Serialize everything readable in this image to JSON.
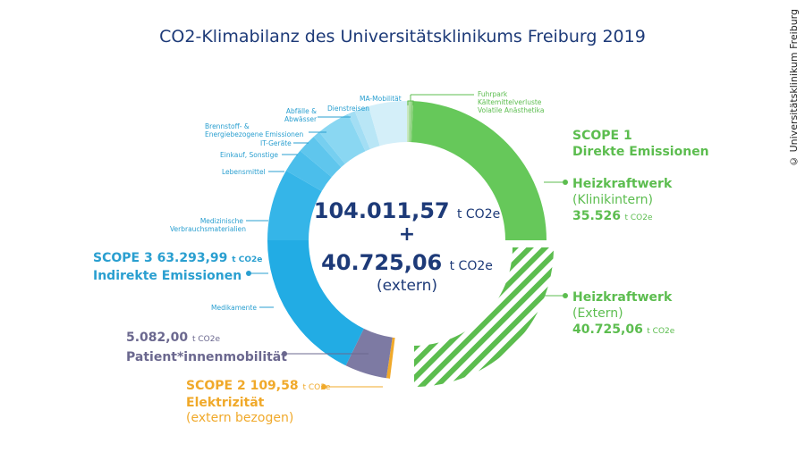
{
  "title": "CO2-Klimabilanz des Universitätsklinikums Freiburg 2019",
  "copyright": "© Universitätsklinikum Freiburg",
  "center": {
    "total": "104.011,57",
    "unit": "t CO2e",
    "plus": "+",
    "extern": "40.725,06",
    "extern_label": "(extern)"
  },
  "labels": {
    "scope1": "SCOPE 1",
    "scope1_sub": "Direkte Emissionen",
    "hkw_int": "Heizkraftwerk",
    "hkw_int_sub": "(Klinikintern)",
    "hkw_int_val": "35.526",
    "unit": "t CO2e",
    "hkw_ext": "Heizkraftwerk",
    "hkw_ext_sub": "(Extern)",
    "hkw_ext_val": "40.725,06",
    "scope3": "SCOPE 3 63.293,99",
    "scope3_sub": "Indirekte Emissionen",
    "patient_val": "5.082,00",
    "patient": "Patient*innenmobilität",
    "scope2": "SCOPE 2 109,58",
    "scope2_sub": "Elektrizität",
    "scope2_sub2": "(extern bezogen)",
    "fuhrpark": "Fuhrpark",
    "kaelte": "Kältemittelverluste",
    "volatile": "Volatile Anästhetika",
    "ma": "MA-Mobilität",
    "dienst": "Dienstreisen",
    "abfall1": "Abfälle &",
    "abfall2": "Abwässer",
    "brenn1": "Brennstoff- &",
    "brenn2": "Energiebezogene Emissionen",
    "it": "IT-Geräte",
    "einkauf": "Einkauf, Sonstige",
    "lebens": "Lebensmittel",
    "med1": "Medizinische",
    "med2": "Verbrauchsmaterialien",
    "medik": "Medikamente"
  },
  "chart_data": {
    "type": "pie",
    "title": "CO2-Klimabilanz des Universitätsklinikums Freiburg 2019",
    "unit": "t CO2e",
    "series": [
      {
        "name": "Fuhrpark",
        "color": "#c9e8c0"
      },
      {
        "name": "Kältemittelverluste",
        "color": "#a8dc9c"
      },
      {
        "name": "Volatile Anästhetika",
        "color": "#8ed27f"
      },
      {
        "name": "Heizkraftwerk (Klinikintern)",
        "value": 35526,
        "color": "#66c85a"
      },
      {
        "name": "Heizkraftwerk (Extern)",
        "value": 40725.06,
        "color": "#5cbd4f",
        "pattern": "hatched"
      },
      {
        "name": "SCOPE 2 Elektrizität (extern bezogen)",
        "value": 109.58,
        "color": "#f0a92a"
      },
      {
        "name": "Patient*innenmobilität",
        "value": 5082.0,
        "color": "#7d7aa3"
      },
      {
        "name": "Medikamente",
        "color": "#22ace4"
      },
      {
        "name": "Medizinische Verbrauchsmaterialien",
        "color": "#35b5e8"
      },
      {
        "name": "Lebensmittel",
        "color": "#4bbeeb"
      },
      {
        "name": "Einkauf, Sonstige",
        "color": "#5fc6ed"
      },
      {
        "name": "IT-Geräte",
        "color": "#76cff0"
      },
      {
        "name": "Brennstoff- & Energiebezogene Emissionen",
        "color": "#8ad7f2"
      },
      {
        "name": "Abfälle & Abwässer",
        "color": "#a3def4"
      },
      {
        "name": "Dienstreisen",
        "color": "#b9e6f6"
      },
      {
        "name": "MA-Mobilität",
        "color": "#d4eff9"
      }
    ],
    "scope_totals": {
      "SCOPE 1": 35526,
      "SCOPE 2": 109.58,
      "SCOPE 3": 63293.99
    }
  }
}
